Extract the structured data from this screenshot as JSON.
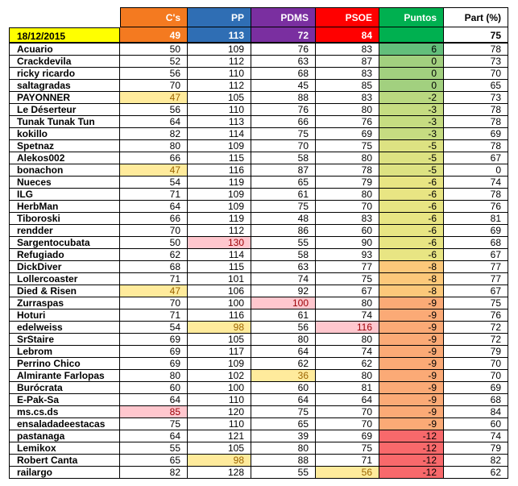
{
  "header": {
    "cs": {
      "label": "C's",
      "color": "#f47a20"
    },
    "pp": {
      "label": "PP",
      "color": "#2f6eb4"
    },
    "pdms": {
      "label": "PDMS",
      "color": "#7a2fa0"
    },
    "psoe": {
      "label": "PSOE",
      "color": "#ff0000"
    },
    "puntos": {
      "label": "Puntos",
      "color": "#00b050"
    },
    "part": {
      "label": "Part (%)",
      "color": "#ffffff"
    }
  },
  "date_row": {
    "date": "18/12/2015",
    "date_color": "#ffff00",
    "cs": "49",
    "pp": "113",
    "pdms": "72",
    "psoe": "84",
    "puntos": "",
    "part": "75"
  },
  "colors": {
    "highlight_orange": "#ffeb9c",
    "highlight_red": "#ffc7ce"
  },
  "columns": [
    "name",
    "cs",
    "pp",
    "pdms",
    "psoe",
    "puntos",
    "part"
  ],
  "rows": [
    {
      "name": "Acuario",
      "cs": "50",
      "pp": "109",
      "pdms": "76",
      "psoe": "83",
      "puntos": "6",
      "part": "78"
    },
    {
      "name": "Crackdevila",
      "cs": "52",
      "pp": "112",
      "pdms": "63",
      "psoe": "87",
      "puntos": "0",
      "part": "73"
    },
    {
      "name": "ricky ricardo",
      "cs": "56",
      "pp": "110",
      "pdms": "68",
      "psoe": "83",
      "puntos": "0",
      "part": "70"
    },
    {
      "name": "saltagradas",
      "cs": "70",
      "pp": "112",
      "pdms": "45",
      "psoe": "85",
      "puntos": "0",
      "part": "65"
    },
    {
      "name": "PAYONNER",
      "cs": "47",
      "pp": "105",
      "pdms": "88",
      "psoe": "83",
      "puntos": "-2",
      "part": "73"
    },
    {
      "name": "Le Déserteur",
      "cs": "56",
      "pp": "110",
      "pdms": "76",
      "psoe": "80",
      "puntos": "-3",
      "part": "78"
    },
    {
      "name": "Tunak Tunak Tun",
      "cs": "64",
      "pp": "113",
      "pdms": "66",
      "psoe": "76",
      "puntos": "-3",
      "part": "78"
    },
    {
      "name": "kokillo",
      "cs": "82",
      "pp": "114",
      "pdms": "75",
      "psoe": "69",
      "puntos": "-3",
      "part": "69"
    },
    {
      "name": "Spetnaz",
      "cs": "80",
      "pp": "109",
      "pdms": "70",
      "psoe": "75",
      "puntos": "-5",
      "part": "78"
    },
    {
      "name": "Alekos002",
      "cs": "66",
      "pp": "115",
      "pdms": "58",
      "psoe": "80",
      "puntos": "-5",
      "part": "67"
    },
    {
      "name": "bonachon",
      "cs": "47",
      "pp": "116",
      "pdms": "87",
      "psoe": "78",
      "puntos": "-5",
      "part": "0"
    },
    {
      "name": "Nueces",
      "cs": "54",
      "pp": "119",
      "pdms": "65",
      "psoe": "79",
      "puntos": "-6",
      "part": "74"
    },
    {
      "name": "ILG",
      "cs": "71",
      "pp": "109",
      "pdms": "61",
      "psoe": "80",
      "puntos": "-6",
      "part": "78"
    },
    {
      "name": "HerbMan",
      "cs": "64",
      "pp": "109",
      "pdms": "75",
      "psoe": "70",
      "puntos": "-6",
      "part": "76"
    },
    {
      "name": "Tiboroski",
      "cs": "66",
      "pp": "119",
      "pdms": "48",
      "psoe": "83",
      "puntos": "-6",
      "part": "81"
    },
    {
      "name": "rendder",
      "cs": "70",
      "pp": "112",
      "pdms": "86",
      "psoe": "60",
      "puntos": "-6",
      "part": "69"
    },
    {
      "name": "Sargentocubata",
      "cs": "50",
      "pp": "130",
      "pdms": "55",
      "psoe": "90",
      "puntos": "-6",
      "part": "68"
    },
    {
      "name": "Refugiado",
      "cs": "62",
      "pp": "114",
      "pdms": "58",
      "psoe": "93",
      "puntos": "-6",
      "part": "67"
    },
    {
      "name": "DickDiver",
      "cs": "68",
      "pp": "115",
      "pdms": "63",
      "psoe": "77",
      "puntos": "-8",
      "part": "77"
    },
    {
      "name": "Lollercoaster",
      "cs": "71",
      "pp": "101",
      "pdms": "74",
      "psoe": "75",
      "puntos": "-8",
      "part": "77"
    },
    {
      "name": "Died & Risen",
      "cs": "47",
      "pp": "106",
      "pdms": "92",
      "psoe": "67",
      "puntos": "-8",
      "part": "67"
    },
    {
      "name": "Zurraspas",
      "cs": "70",
      "pp": "100",
      "pdms": "100",
      "psoe": "80",
      "puntos": "-9",
      "part": "75"
    },
    {
      "name": "Hoturi",
      "cs": "71",
      "pp": "116",
      "pdms": "61",
      "psoe": "74",
      "puntos": "-9",
      "part": "76"
    },
    {
      "name": "edelweiss",
      "cs": "54",
      "pp": "98",
      "pdms": "56",
      "psoe": "116",
      "puntos": "-9",
      "part": "72"
    },
    {
      "name": "SrStaire",
      "cs": "69",
      "pp": "105",
      "pdms": "80",
      "psoe": "80",
      "puntos": "-9",
      "part": "72"
    },
    {
      "name": "Lebrom",
      "cs": "69",
      "pp": "117",
      "pdms": "64",
      "psoe": "74",
      "puntos": "-9",
      "part": "79"
    },
    {
      "name": "Perrino Chico",
      "cs": "69",
      "pp": "109",
      "pdms": "62",
      "psoe": "62",
      "puntos": "-9",
      "part": "70"
    },
    {
      "name": "Almirante Farlopas",
      "cs": "80",
      "pp": "102",
      "pdms": "36",
      "psoe": "80",
      "puntos": "-9",
      "part": "70"
    },
    {
      "name": "Burócrata",
      "cs": "60",
      "pp": "100",
      "pdms": "60",
      "psoe": "81",
      "puntos": "-9",
      "part": "69"
    },
    {
      "name": "E-Pak-Sa",
      "cs": "64",
      "pp": "110",
      "pdms": "64",
      "psoe": "64",
      "puntos": "-9",
      "part": "68"
    },
    {
      "name": "ms.cs.ds",
      "cs": "85",
      "pp": "120",
      "pdms": "75",
      "psoe": "70",
      "puntos": "-9",
      "part": "84"
    },
    {
      "name": "ensaladadeestacas",
      "cs": "75",
      "pp": "110",
      "pdms": "65",
      "psoe": "70",
      "puntos": "-9",
      "part": "60"
    },
    {
      "name": "pastanaga",
      "cs": "64",
      "pp": "121",
      "pdms": "39",
      "psoe": "69",
      "puntos": "-12",
      "part": "74"
    },
    {
      "name": "Lemikox",
      "cs": "55",
      "pp": "105",
      "pdms": "80",
      "psoe": "75",
      "puntos": "-12",
      "part": "79"
    },
    {
      "name": "Robert Canta",
      "cs": "65",
      "pp": "98",
      "pdms": "88",
      "psoe": "71",
      "puntos": "-12",
      "part": "82"
    },
    {
      "name": "railargo",
      "cs": "82",
      "pp": "128",
      "pdms": "55",
      "psoe": "56",
      "puntos": "-12",
      "part": "62"
    }
  ],
  "highlights": [
    {
      "row": 4,
      "col": "cs",
      "color": "#ffeb9c"
    },
    {
      "row": 10,
      "col": "cs",
      "color": "#ffeb9c"
    },
    {
      "row": 16,
      "col": "pp",
      "color": "#ffc7ce"
    },
    {
      "row": 20,
      "col": "cs",
      "color": "#ffeb9c"
    },
    {
      "row": 21,
      "col": "pdms",
      "color": "#ffc7ce"
    },
    {
      "row": 23,
      "col": "pp",
      "color": "#ffeb9c"
    },
    {
      "row": 23,
      "col": "psoe",
      "color": "#ffc7ce"
    },
    {
      "row": 27,
      "col": "pdms",
      "color": "#ffeb9c"
    },
    {
      "row": 30,
      "col": "cs",
      "color": "#ffc7ce"
    },
    {
      "row": 34,
      "col": "pp",
      "color": "#ffeb9c"
    },
    {
      "row": 35,
      "col": "psoe",
      "color": "#ffeb9c"
    }
  ]
}
